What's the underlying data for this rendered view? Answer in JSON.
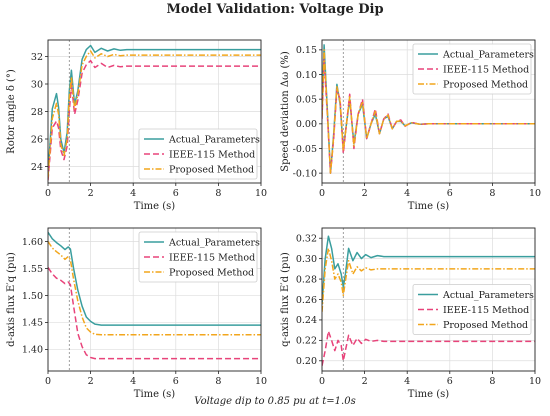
{
  "figure": {
    "title": "Model Validation: Voltage Dip",
    "footnote": "Voltage dip to 0.85 pu at t=1.0s"
  },
  "colors": {
    "actual": "#3a9e9e",
    "ieee": "#e8437a",
    "proposed": "#f2a61c",
    "event_line": "#888888",
    "grid": "#dddddd"
  },
  "legend": {
    "entries": [
      "Actual_Parameters",
      "IEEE-115 Method",
      "Proposed Method"
    ]
  },
  "chart_data": [
    {
      "type": "line",
      "title": "",
      "xlabel": "Time (s)",
      "ylabel": "Rotor angle δ (°)",
      "xlim": [
        0,
        10
      ],
      "ylim": [
        22.8,
        33.2
      ],
      "xticks": [
        0,
        2,
        4,
        6,
        8,
        10
      ],
      "yticks": [
        24,
        26,
        28,
        30,
        32
      ],
      "grid": true,
      "legend_position": "lower-right",
      "event_x": 1.0,
      "series": [
        {
          "name": "Actual_Parameters",
          "style": "solid",
          "x": [
            0,
            0.2,
            0.4,
            0.5,
            0.6,
            0.75,
            0.9,
            1.0,
            1.1,
            1.25,
            1.4,
            1.6,
            1.8,
            2.0,
            2.2,
            2.5,
            2.8,
            3.1,
            3.4,
            3.7,
            4.0,
            4.5,
            5,
            6,
            8,
            10
          ],
          "y": [
            23.5,
            28.2,
            29.3,
            28.3,
            26.0,
            25.0,
            26.5,
            29.5,
            31.0,
            28.5,
            29.5,
            31.8,
            32.5,
            32.8,
            32.3,
            32.6,
            32.4,
            32.55,
            32.45,
            32.5,
            32.5,
            32.5,
            32.5,
            32.5,
            32.5,
            32.5
          ]
        },
        {
          "name": "IEEE-115 Method",
          "style": "dashed",
          "x": [
            0,
            0.2,
            0.4,
            0.5,
            0.6,
            0.75,
            0.9,
            1.0,
            1.1,
            1.25,
            1.4,
            1.6,
            1.8,
            2.0,
            2.2,
            2.5,
            2.8,
            3.1,
            3.4,
            3.7,
            4.0,
            4.5,
            5,
            6,
            8,
            10
          ],
          "y": [
            23.0,
            26.8,
            27.3,
            26.8,
            25.2,
            24.5,
            25.5,
            28.0,
            30.0,
            27.8,
            28.8,
            30.8,
            31.4,
            31.7,
            31.2,
            31.5,
            31.2,
            31.35,
            31.25,
            31.3,
            31.3,
            31.3,
            31.3,
            31.3,
            31.3,
            31.3
          ]
        },
        {
          "name": "Proposed Method",
          "style": "dashdot",
          "x": [
            0,
            0.2,
            0.4,
            0.5,
            0.6,
            0.75,
            0.9,
            1.0,
            1.1,
            1.25,
            1.4,
            1.6,
            1.8,
            2.0,
            2.2,
            2.5,
            2.8,
            3.1,
            3.4,
            3.7,
            4.0,
            4.5,
            5,
            6,
            8,
            10
          ],
          "y": [
            23.2,
            27.5,
            28.6,
            27.8,
            25.6,
            24.8,
            26.0,
            29.0,
            30.5,
            28.2,
            29.2,
            31.4,
            32.0,
            32.4,
            31.9,
            32.2,
            32.0,
            32.15,
            32.05,
            32.1,
            32.1,
            32.1,
            32.1,
            32.1,
            32.1,
            32.1
          ]
        }
      ]
    },
    {
      "type": "line",
      "title": "",
      "xlabel": "Time (s)",
      "ylabel": "Speed deviation Δω (%)",
      "xlim": [
        0,
        10
      ],
      "ylim": [
        -0.12,
        0.17
      ],
      "xticks": [
        0,
        2,
        4,
        6,
        8,
        10
      ],
      "yticks": [
        -0.1,
        -0.05,
        0.0,
        0.05,
        0.1,
        0.15
      ],
      "grid": true,
      "legend_position": "upper-right",
      "event_x": 1.0,
      "series": [
        {
          "name": "Actual_Parameters",
          "style": "solid",
          "x": [
            0,
            0.1,
            0.25,
            0.4,
            0.55,
            0.7,
            0.85,
            1.0,
            1.15,
            1.3,
            1.5,
            1.7,
            1.9,
            2.1,
            2.3,
            2.5,
            2.7,
            2.9,
            3.1,
            3.3,
            3.5,
            3.7,
            3.9,
            4.2,
            4.6,
            5,
            6,
            10
          ],
          "y": [
            0.02,
            0.16,
            0.03,
            -0.1,
            -0.02,
            0.08,
            0.04,
            -0.05,
            0.0,
            0.05,
            -0.04,
            0.02,
            0.04,
            -0.03,
            0.0,
            0.02,
            -0.02,
            0.01,
            0.015,
            -0.01,
            0.005,
            0.005,
            -0.004,
            0.002,
            -0.001,
            0.0,
            0.0,
            0.0
          ]
        },
        {
          "name": "IEEE-115 Method",
          "style": "dashed",
          "x": [
            0,
            0.1,
            0.25,
            0.4,
            0.55,
            0.7,
            0.85,
            1.0,
            1.15,
            1.3,
            1.5,
            1.7,
            1.9,
            2.1,
            2.3,
            2.5,
            2.7,
            2.9,
            3.1,
            3.3,
            3.5,
            3.7,
            3.9,
            4.2,
            4.6,
            5,
            6,
            10
          ],
          "y": [
            0.01,
            0.13,
            0.02,
            -0.1,
            -0.03,
            0.07,
            0.05,
            -0.06,
            0.0,
            0.06,
            -0.05,
            0.02,
            0.05,
            -0.03,
            0.0,
            0.03,
            -0.02,
            0.01,
            0.02,
            -0.01,
            0.005,
            0.008,
            -0.005,
            0.003,
            -0.001,
            0.0,
            0.0,
            0.0
          ]
        },
        {
          "name": "Proposed Method",
          "style": "dashdot",
          "x": [
            0,
            0.1,
            0.25,
            0.4,
            0.55,
            0.7,
            0.85,
            1.0,
            1.15,
            1.3,
            1.5,
            1.7,
            1.9,
            2.1,
            2.3,
            2.5,
            2.7,
            2.9,
            3.1,
            3.3,
            3.5,
            3.7,
            3.9,
            4.2,
            4.6,
            5,
            6,
            10
          ],
          "y": [
            0.015,
            0.15,
            0.025,
            -0.1,
            -0.025,
            0.075,
            0.045,
            -0.055,
            0.0,
            0.055,
            -0.045,
            0.02,
            0.045,
            -0.03,
            0.0,
            0.025,
            -0.02,
            0.01,
            0.018,
            -0.01,
            0.005,
            0.006,
            -0.004,
            0.002,
            -0.001,
            0.0,
            0.0,
            0.0
          ]
        }
      ]
    },
    {
      "type": "line",
      "title": "",
      "xlabel": "Time (s)",
      "ylabel": "d-axis flux E′q (pu)",
      "xlim": [
        0,
        10
      ],
      "ylim": [
        1.36,
        1.625
      ],
      "xticks": [
        0,
        2,
        4,
        6,
        8,
        10
      ],
      "yticks": [
        1.4,
        1.45,
        1.5,
        1.55,
        1.6
      ],
      "grid": true,
      "legend_position": "upper-right",
      "event_x": 1.0,
      "series": [
        {
          "name": "Actual_Parameters",
          "style": "solid",
          "x": [
            0,
            0.2,
            0.4,
            0.6,
            0.8,
            0.95,
            1.05,
            1.2,
            1.4,
            1.6,
            1.8,
            2.0,
            2.2,
            2.5,
            3,
            4,
            6,
            10
          ],
          "y": [
            1.617,
            1.605,
            1.598,
            1.592,
            1.585,
            1.59,
            1.586,
            1.55,
            1.51,
            1.48,
            1.46,
            1.452,
            1.447,
            1.445,
            1.445,
            1.445,
            1.445,
            1.445
          ]
        },
        {
          "name": "IEEE-115 Method",
          "style": "dashed",
          "x": [
            0,
            0.2,
            0.4,
            0.6,
            0.8,
            0.95,
            1.05,
            1.2,
            1.4,
            1.6,
            1.8,
            2.0,
            2.2,
            2.5,
            3,
            4,
            6,
            10
          ],
          "y": [
            1.552,
            1.54,
            1.532,
            1.528,
            1.522,
            1.525,
            1.52,
            1.48,
            1.43,
            1.405,
            1.39,
            1.385,
            1.383,
            1.383,
            1.383,
            1.383,
            1.383,
            1.383
          ]
        },
        {
          "name": "Proposed Method",
          "style": "dashdot",
          "x": [
            0,
            0.2,
            0.4,
            0.6,
            0.8,
            0.95,
            1.05,
            1.2,
            1.4,
            1.6,
            1.8,
            2.0,
            2.2,
            2.5,
            3,
            4,
            6,
            10
          ],
          "y": [
            1.6,
            1.588,
            1.581,
            1.575,
            1.567,
            1.572,
            1.566,
            1.53,
            1.49,
            1.46,
            1.44,
            1.432,
            1.428,
            1.427,
            1.427,
            1.427,
            1.427,
            1.427
          ]
        }
      ]
    },
    {
      "type": "line",
      "title": "",
      "xlabel": "Time (s)",
      "ylabel": "q-axis flux E′d (pu)",
      "xlim": [
        0,
        10
      ],
      "ylim": [
        0.19,
        0.33
      ],
      "xticks": [
        0,
        2,
        4,
        6,
        8,
        10
      ],
      "yticks": [
        0.2,
        0.22,
        0.24,
        0.26,
        0.28,
        0.3,
        0.32
      ],
      "grid": true,
      "legend_position": "center-right",
      "event_x": 1.0,
      "series": [
        {
          "name": "Actual_Parameters",
          "style": "solid",
          "x": [
            0,
            0.15,
            0.3,
            0.45,
            0.6,
            0.75,
            0.9,
            1.0,
            1.1,
            1.25,
            1.45,
            1.65,
            1.85,
            2.05,
            2.3,
            2.6,
            2.9,
            3.3,
            4,
            5,
            6,
            10
          ],
          "y": [
            0.255,
            0.3,
            0.322,
            0.31,
            0.29,
            0.295,
            0.285,
            0.272,
            0.285,
            0.31,
            0.298,
            0.306,
            0.3,
            0.304,
            0.301,
            0.303,
            0.302,
            0.302,
            0.302,
            0.302,
            0.302,
            0.302
          ]
        },
        {
          "name": "IEEE-115 Method",
          "style": "dashed",
          "x": [
            0,
            0.15,
            0.3,
            0.45,
            0.6,
            0.75,
            0.9,
            1.0,
            1.1,
            1.25,
            1.45,
            1.65,
            1.85,
            2.05,
            2.3,
            2.6,
            2.9,
            3.3,
            4,
            5,
            6,
            10
          ],
          "y": [
            0.195,
            0.21,
            0.229,
            0.22,
            0.21,
            0.22,
            0.215,
            0.2,
            0.21,
            0.225,
            0.215,
            0.222,
            0.217,
            0.221,
            0.219,
            0.22,
            0.219,
            0.219,
            0.219,
            0.219,
            0.219,
            0.219
          ]
        },
        {
          "name": "Proposed Method",
          "style": "dashdot",
          "x": [
            0,
            0.15,
            0.3,
            0.45,
            0.6,
            0.75,
            0.9,
            1.0,
            1.1,
            1.25,
            1.45,
            1.65,
            1.85,
            2.05,
            2.3,
            2.6,
            2.9,
            3.3,
            4,
            5,
            6,
            10
          ],
          "y": [
            0.248,
            0.29,
            0.31,
            0.298,
            0.28,
            0.285,
            0.277,
            0.264,
            0.278,
            0.298,
            0.285,
            0.292,
            0.288,
            0.291,
            0.289,
            0.29,
            0.29,
            0.29,
            0.29,
            0.29,
            0.29,
            0.29
          ]
        }
      ]
    }
  ]
}
